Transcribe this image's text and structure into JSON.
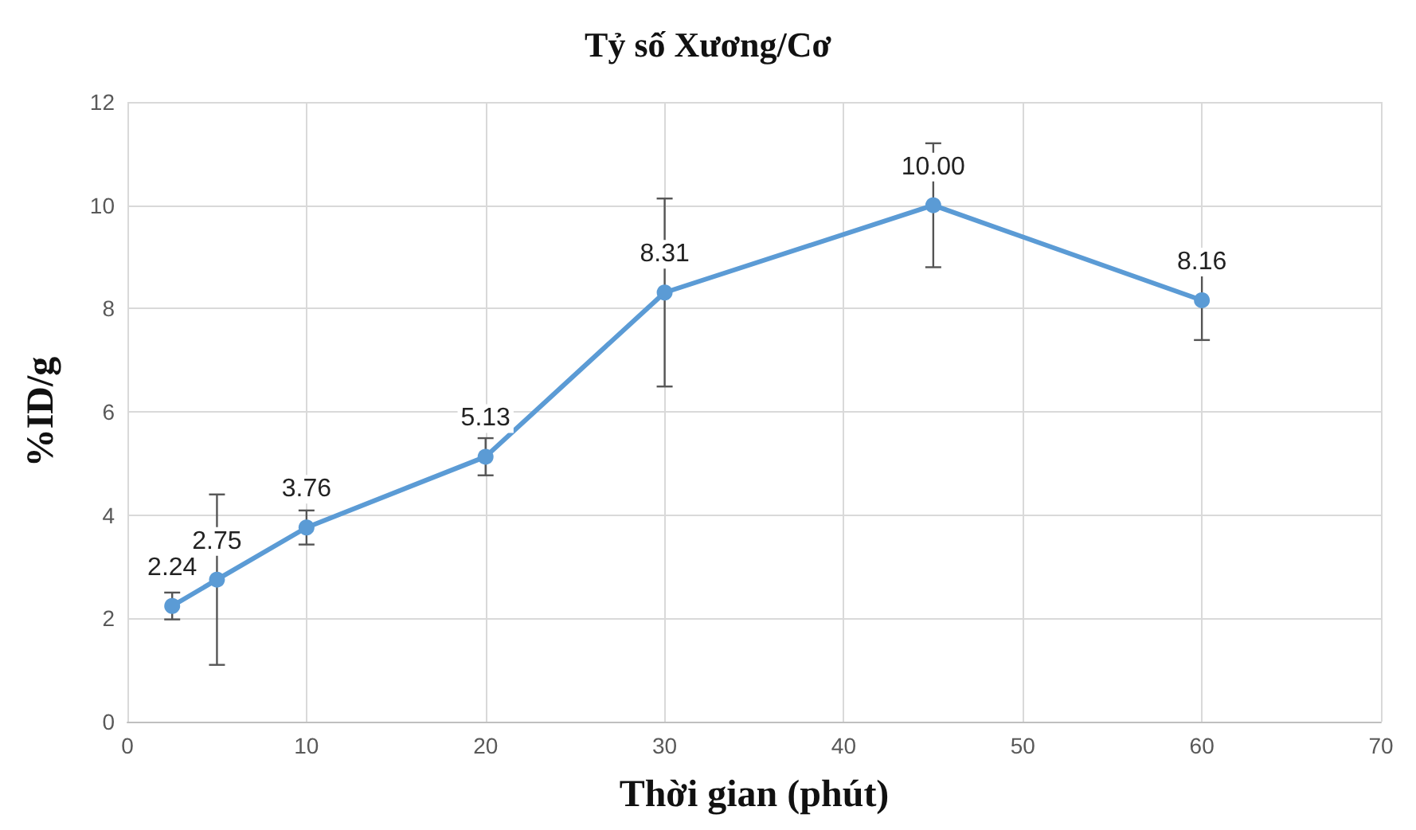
{
  "chart_data": {
    "type": "line",
    "title": "Tỷ số Xương/Cơ",
    "xlabel": "Thời gian (phút)",
    "ylabel": "%ID/g",
    "x": [
      2.5,
      5,
      10,
      20,
      30,
      45,
      60
    ],
    "series": [
      {
        "color": "#5b9bd5",
        "values": [
          2.24,
          2.75,
          3.76,
          5.13,
          8.31,
          10.0,
          8.16
        ],
        "value_labels": [
          "2.24",
          "2.75",
          "3.76",
          "5.13",
          "8.31",
          "10.00",
          "8.16"
        ],
        "errors": [
          0.26,
          1.65,
          0.33,
          0.36,
          1.82,
          1.2,
          0.77
        ]
      }
    ],
    "xlim": [
      0,
      70
    ],
    "xticks": [
      0,
      10,
      20,
      30,
      40,
      50,
      60,
      70
    ],
    "ylim": [
      0,
      12
    ],
    "yticks": [
      0,
      2,
      4,
      6,
      8,
      10,
      12
    ],
    "grid": true,
    "marker": "circle",
    "line_style": "solid"
  }
}
